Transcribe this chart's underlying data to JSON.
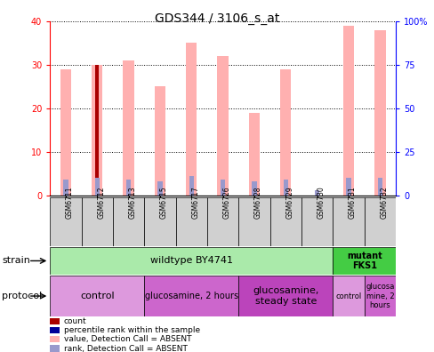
{
  "title": "GDS344 / 3106_s_at",
  "samples": [
    "GSM6711",
    "GSM6712",
    "GSM6713",
    "GSM6715",
    "GSM6717",
    "GSM6726",
    "GSM6728",
    "GSM6729",
    "GSM6730",
    "GSM6731",
    "GSM6732"
  ],
  "pink_values": [
    29,
    30,
    31,
    25,
    35,
    32,
    19,
    29,
    null,
    39,
    38
  ],
  "blue_rank_values": [
    9,
    10,
    9,
    8,
    11,
    9,
    8,
    9,
    3,
    10,
    10
  ],
  "red_count_values": [
    null,
    30,
    null,
    null,
    null,
    null,
    null,
    null,
    null,
    null,
    null
  ],
  "ylim_left": [
    0,
    40
  ],
  "ylim_right": [
    0,
    100
  ],
  "left_ticks": [
    0,
    10,
    20,
    30,
    40
  ],
  "right_ticks": [
    0,
    25,
    50,
    75,
    100
  ],
  "right_tick_labels": [
    "0",
    "25",
    "50",
    "75",
    "100%"
  ],
  "strain_wildtype_label": "wildtype BY4741",
  "strain_mutant_label": "mutant\nFKS1",
  "protocol_groups": [
    {
      "span": [
        0,
        3
      ],
      "label": "control",
      "color": "#dd99dd",
      "fontsize": 8
    },
    {
      "span": [
        3,
        6
      ],
      "label": "glucosamine, 2 hours",
      "color": "#cc66cc",
      "fontsize": 7
    },
    {
      "span": [
        6,
        9
      ],
      "label": "glucosamine,\nsteady state",
      "color": "#bb44bb",
      "fontsize": 8
    },
    {
      "span": [
        9,
        10
      ],
      "label": "control",
      "color": "#dd99dd",
      "fontsize": 6
    },
    {
      "span": [
        10,
        11
      ],
      "label": "glucosa\nmine, 2\nhours",
      "color": "#cc66cc",
      "fontsize": 6
    }
  ],
  "pink_bar_width": 0.35,
  "blue_bar_width": 0.15,
  "red_bar_width": 0.1,
  "pink_color": "#ffb0b0",
  "blue_color": "#9999cc",
  "red_color": "#aa0000",
  "green_light": "#aaeaaa",
  "green_bright": "#44cc44",
  "legend_items": [
    {
      "color": "#aa0000",
      "label": "count"
    },
    {
      "color": "#000099",
      "label": "percentile rank within the sample"
    },
    {
      "color": "#ffb0b0",
      "label": "value, Detection Call = ABSENT"
    },
    {
      "color": "#9999cc",
      "label": "rank, Detection Call = ABSENT"
    }
  ]
}
